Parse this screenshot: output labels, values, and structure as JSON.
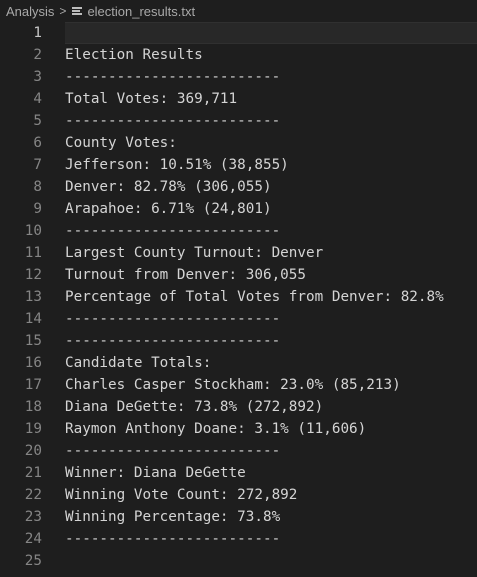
{
  "breadcrumb": {
    "folder": "Analysis",
    "separator": ">",
    "file": "election_results.txt"
  },
  "editor": {
    "current_line": 1,
    "lines": [
      {
        "number": "1",
        "text": ""
      },
      {
        "number": "2",
        "text": "Election Results"
      },
      {
        "number": "3",
        "text": "-------------------------"
      },
      {
        "number": "4",
        "text": "Total Votes: 369,711"
      },
      {
        "number": "5",
        "text": "-------------------------"
      },
      {
        "number": "6",
        "text": "County Votes:"
      },
      {
        "number": "7",
        "text": "Jefferson: 10.51% (38,855)"
      },
      {
        "number": "8",
        "text": "Denver: 82.78% (306,055)"
      },
      {
        "number": "9",
        "text": "Arapahoe: 6.71% (24,801)"
      },
      {
        "number": "10",
        "text": "-------------------------"
      },
      {
        "number": "11",
        "text": "Largest County Turnout: Denver"
      },
      {
        "number": "12",
        "text": "Turnout from Denver: 306,055"
      },
      {
        "number": "13",
        "text": "Percentage of Total Votes from Denver: 82.8%"
      },
      {
        "number": "14",
        "text": "-------------------------"
      },
      {
        "number": "15",
        "text": "-------------------------"
      },
      {
        "number": "16",
        "text": "Candidate Totals:"
      },
      {
        "number": "17",
        "text": "Charles Casper Stockham: 23.0% (85,213)"
      },
      {
        "number": "18",
        "text": "Diana DeGette: 73.8% (272,892)"
      },
      {
        "number": "19",
        "text": "Raymon Anthony Doane: 3.1% (11,606)"
      },
      {
        "number": "20",
        "text": "-------------------------"
      },
      {
        "number": "21",
        "text": "Winner: Diana DeGette"
      },
      {
        "number": "22",
        "text": "Winning Vote Count: 272,892"
      },
      {
        "number": "23",
        "text": "Winning Percentage: 73.8%"
      },
      {
        "number": "24",
        "text": "-------------------------"
      },
      {
        "number": "25",
        "text": ""
      }
    ]
  }
}
